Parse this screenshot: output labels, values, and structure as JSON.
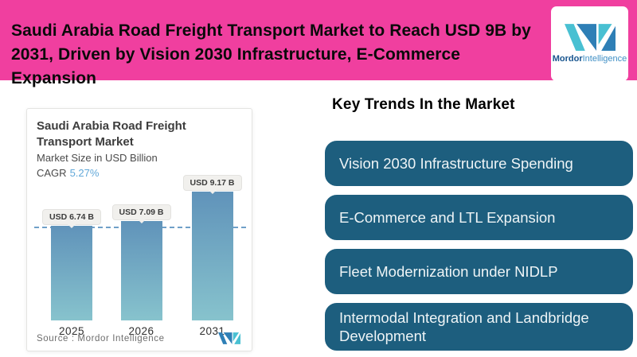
{
  "header": {
    "title_lines": [
      "Saudi Arabia Road Freight Transport Market to Reach USD 9B by",
      "2031, Driven by Vision 2030 Infrastructure, E-Commerce Expansion"
    ],
    "background_color": "#f03f9f",
    "logo": {
      "brand_bold": "Mordor",
      "brand_light": "Intelligence"
    }
  },
  "chart_card": {
    "title": "Saudi Arabia Road Freight Transport Market",
    "subtitle": "Market Size in USD Billion",
    "cagr_label": "CAGR",
    "cagr_value": "5.27%",
    "cagr_value_color": "#61a8d9",
    "source": "Source :  Mordor Intelligence"
  },
  "chart_data": {
    "type": "bar",
    "title": "Saudi Arabia Road Freight Transport Market",
    "ylabel": "Market Size in USD Billion",
    "categories": [
      "2025",
      "2026",
      "2031"
    ],
    "values": [
      6.74,
      7.09,
      9.17
    ],
    "value_labels": [
      "USD 6.74 B",
      "USD 7.09 B",
      "USD 9.17 B"
    ],
    "unit": "USD Billion",
    "cagr_percent": 5.27,
    "reference_line_value": 6.74,
    "reference_line_style": "dashed",
    "bar_color_top": "#6093ba",
    "bar_color_bottom": "#87c3cd",
    "ylim": [
      0,
      10
    ],
    "grid": false,
    "legend": false
  },
  "key_trends": {
    "heading": "Key Trends In the Market",
    "button_color": "#1d5e7e",
    "items": [
      "Vision 2030 Infrastructure Spending",
      "E-Commerce and LTL Expansion",
      "Fleet Modernization under NIDLP",
      "Intermodal Integration and Landbridge Development"
    ]
  }
}
